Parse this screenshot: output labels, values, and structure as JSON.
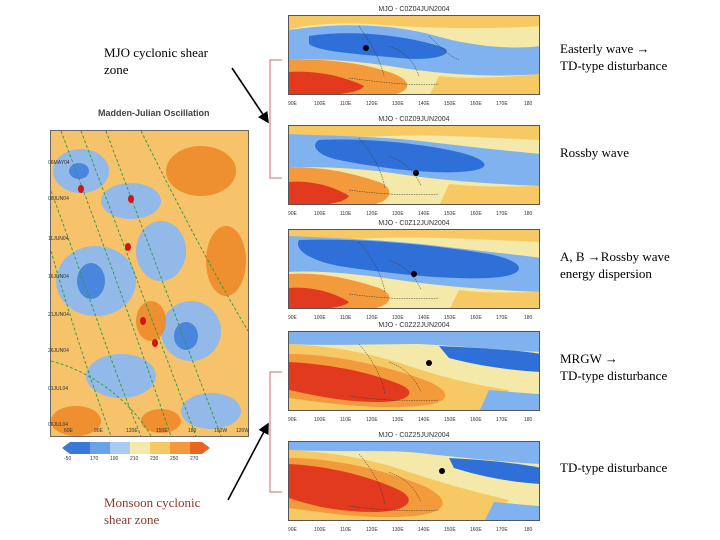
{
  "annotations": {
    "mjo_zone": "MJO cyclonic shear\nzone",
    "monsoon_zone": "Monsoon cyclonic\nshear zone",
    "panel1": "Easterly wave →\nTD-type disturbance",
    "panel2": "Rossby wave",
    "panel3": "A, B →Rossby wave\nenergy dispersion",
    "panel4": "MRGW →\nTD-type disturbance",
    "panel5": "TD-type disturbance"
  },
  "left_map": {
    "title": "Madden-Julian Oscillation",
    "y_labels": [
      "06MAY04",
      "06JUN04",
      "11JUN04",
      "16JUN04",
      "21JUN04",
      "26JUN04",
      "01JUL04",
      "06JUL04"
    ],
    "x_labels": [
      "60E",
      "90E",
      "120E",
      "150E",
      "180",
      "150W",
      "120W"
    ],
    "colorbar_labels": [
      "-50",
      "170",
      "190",
      "210",
      "230",
      "250",
      "270"
    ]
  },
  "panels": [
    {
      "title": "MJO - C0Z04JUN2004"
    },
    {
      "title": "MJO - C0Z09JUN2004"
    },
    {
      "title": "MJO - C0Z12JUN2004"
    },
    {
      "title": "MJO - C0Z22JUN2004"
    },
    {
      "title": "MJO - C0Z25JUN2004"
    }
  ],
  "panel_x_labels": [
    "90E",
    "100E",
    "110E",
    "120E",
    "130E",
    "140E",
    "150E",
    "160E",
    "170E",
    "180"
  ],
  "colors": {
    "deep_blue": "#2f6fd8",
    "light_blue": "#7fb2ee",
    "pale": "#f4e9a8",
    "yellow": "#f7d26a",
    "orange": "#f39b3c",
    "red": "#e23a1e",
    "contour": "#2f9a3f",
    "arrow": "#000000"
  }
}
